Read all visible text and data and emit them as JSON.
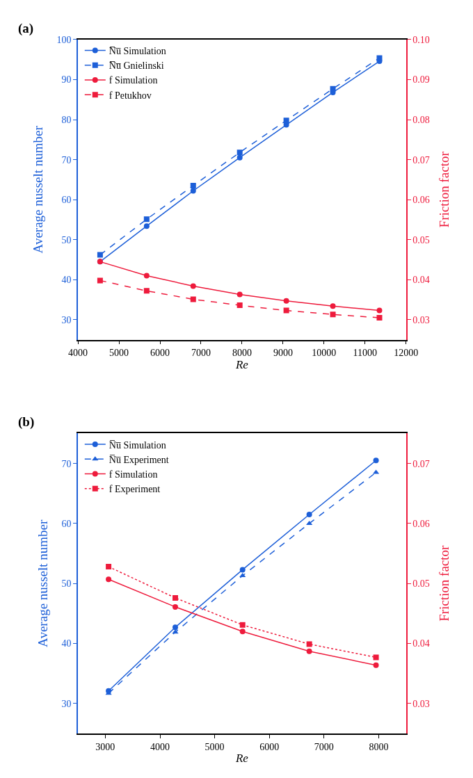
{
  "chart_data": [
    {
      "type": "line",
      "title": "(a)",
      "xlabel": "Re",
      "ylabel": "Average nusselt number",
      "y2label": "Friction factor",
      "x": [
        4540,
        5675,
        6810,
        7945,
        9080,
        10215,
        11350
      ],
      "xlim": [
        4000,
        12000
      ],
      "xticks": [
        4000,
        5000,
        6000,
        7000,
        8000,
        9000,
        10000,
        11000,
        12000
      ],
      "ylim": [
        25,
        100
      ],
      "yticks": [
        30,
        40,
        50,
        60,
        70,
        80,
        90,
        100
      ],
      "y2lim": [
        0.025,
        0.1
      ],
      "y2ticks": [
        0.03,
        0.04,
        0.05,
        0.06,
        0.07,
        0.08,
        0.09,
        {
          "value": 0.1,
          "label": "0.10"
        }
      ],
      "legend": "top left",
      "series": [
        {
          "name": "N̅u̅ Simulation",
          "color": "#1d5fd8",
          "marker": "circle",
          "line_style": "solid",
          "values": [
            44.5,
            53.4,
            62.2,
            70.5,
            78.7,
            86.8,
            94.6
          ]
        },
        {
          "name": "N̅u̅ Gnielinski",
          "color": "#1d5fd8",
          "marker": "square",
          "line_style": "dashed",
          "values": [
            46.2,
            55.1,
            63.5,
            71.8,
            79.8,
            87.7,
            95.4
          ]
        },
        {
          "name": "f Simulation",
          "color": "#ee1b3c",
          "marker": "circle",
          "line_style": "solid",
          "axis": "y2",
          "values": [
            0.0445,
            0.041,
            0.0384,
            0.0363,
            0.0347,
            0.0334,
            0.0323
          ]
        },
        {
          "name": "f Petukhov",
          "color": "#ee1b3c",
          "marker": "square",
          "line_style": "dashed",
          "axis": "y2",
          "values": [
            0.0398,
            0.0372,
            0.0351,
            0.0336,
            0.0323,
            0.0313,
            0.0305
          ]
        }
      ]
    },
    {
      "type": "line",
      "title": "(b)",
      "xlabel": "Re",
      "ylabel": "Average nusselt number",
      "y2label": "Friction factor",
      "x": [
        3060,
        4280,
        5510,
        6730,
        7950
      ],
      "xlim": [
        2500,
        8500
      ],
      "xticks": [
        3000,
        4000,
        5000,
        6000,
        7000,
        8000
      ],
      "ylim": [
        25,
        75
      ],
      "yticks": [
        30,
        40,
        50,
        60,
        70
      ],
      "y2lim": [
        0.025,
        0.075
      ],
      "y2ticks": [
        0.03,
        0.04,
        0.05,
        0.06,
        0.07
      ],
      "legend": "top left",
      "series": [
        {
          "name": "N̅u̅ Simulation",
          "color": "#1d5fd8",
          "marker": "circle",
          "line_style": "solid",
          "values": [
            32.1,
            42.7,
            52.3,
            61.5,
            70.5
          ]
        },
        {
          "name": "N̅u̅ Experiment",
          "color": "#1d5fd8",
          "marker": "triangle",
          "line_style": "dashed",
          "values": [
            31.7,
            41.9,
            51.3,
            60.0,
            68.5
          ]
        },
        {
          "name": "f Simulation",
          "color": "#ee1b3c",
          "marker": "circle",
          "line_style": "solid",
          "axis": "y2",
          "values": [
            0.0507,
            0.0461,
            0.042,
            0.0387,
            0.0364
          ]
        },
        {
          "name": "f Experiment",
          "color": "#ee1b3c",
          "marker": "square",
          "line_style": "dotted",
          "axis": "y2",
          "values": [
            0.0528,
            0.0476,
            0.0431,
            0.0399,
            0.0377
          ]
        }
      ]
    }
  ]
}
